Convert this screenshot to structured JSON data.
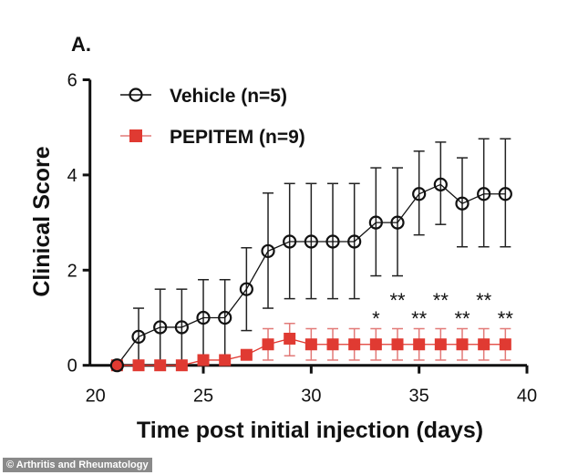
{
  "panel_label": "A.",
  "credit": "© Arthritis and Rheumatology",
  "chart_data": {
    "type": "line",
    "title": "",
    "xlabel": "Time post initial injection (days)",
    "ylabel": "Clinical Score",
    "xlim": [
      20,
      40
    ],
    "ylim": [
      0,
      6
    ],
    "xticks": [
      20,
      25,
      30,
      35,
      40
    ],
    "yticks": [
      0,
      2,
      4,
      6
    ],
    "grid": false,
    "legend": "top-left",
    "x": [
      21,
      22,
      23,
      24,
      25,
      26,
      27,
      28,
      29,
      30,
      31,
      32,
      33,
      34,
      35,
      36,
      37,
      38,
      39
    ],
    "series": [
      {
        "name": "Vehicle (n=5)",
        "color": "#111111",
        "marker": "open-circle",
        "values": [
          0,
          0.6,
          0.8,
          0.8,
          1.0,
          1.0,
          1.6,
          2.4,
          2.6,
          2.6,
          2.6,
          2.6,
          3.0,
          3.0,
          3.6,
          3.8,
          3.4,
          3.6,
          3.6
        ],
        "error_low": [
          0,
          0,
          0,
          0,
          0,
          0,
          0.73,
          1.2,
          1.4,
          1.4,
          1.4,
          1.4,
          1.88,
          1.88,
          2.74,
          2.96,
          2.49,
          2.49,
          2.49
        ],
        "error_high": [
          0,
          1.2,
          1.6,
          1.6,
          1.8,
          1.8,
          2.47,
          3.62,
          3.82,
          3.82,
          3.82,
          3.82,
          4.15,
          4.15,
          4.5,
          4.69,
          4.36,
          4.76,
          4.76
        ]
      },
      {
        "name": "PEPITEM (n=9)",
        "color": "#e03a32",
        "marker": "filled-square",
        "values": [
          0,
          0,
          0,
          0,
          0.11,
          0.11,
          0.22,
          0.44,
          0.56,
          0.44,
          0.44,
          0.44,
          0.44,
          0.44,
          0.44,
          0.44,
          0.44,
          0.44,
          0.44
        ],
        "error_low": [
          0,
          0,
          0,
          0,
          0.11,
          0.11,
          0.22,
          0.11,
          0.2,
          0.11,
          0.11,
          0.11,
          0.11,
          0.11,
          0.11,
          0.11,
          0.11,
          0.11,
          0.11
        ],
        "error_high": [
          0,
          0,
          0,
          0,
          0.11,
          0.11,
          0.22,
          0.77,
          0.88,
          0.77,
          0.77,
          0.77,
          0.77,
          0.77,
          0.77,
          0.77,
          0.77,
          0.77,
          0.77
        ]
      }
    ],
    "annotations": [
      {
        "x": 33,
        "text": "*",
        "level": "lower"
      },
      {
        "x": 34,
        "text": "**",
        "level": "upper"
      },
      {
        "x": 35,
        "text": "**",
        "level": "lower"
      },
      {
        "x": 36,
        "text": "**",
        "level": "upper"
      },
      {
        "x": 37,
        "text": "**",
        "level": "lower"
      },
      {
        "x": 38,
        "text": "**",
        "level": "upper"
      },
      {
        "x": 39,
        "text": "**",
        "level": "lower"
      }
    ]
  }
}
